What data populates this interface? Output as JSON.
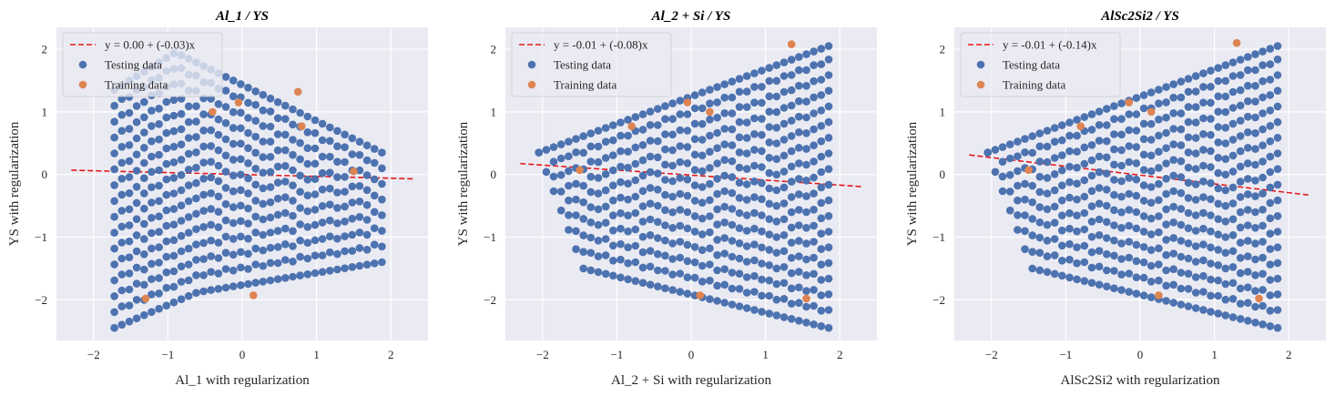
{
  "colors": {
    "background": "#eaeaf2",
    "grid": "#ffffff",
    "testing": "#4c72b0",
    "training": "#dd8452",
    "fit": "#e41a1c"
  },
  "chart_data": [
    {
      "type": "scatter",
      "title": "Al_1 / YS",
      "xlabel": "Al_1 with regularization",
      "ylabel": "YS with regularization",
      "xlim": [
        -2.5,
        2.5
      ],
      "ylim": [
        -2.65,
        2.35
      ],
      "xticks": [
        -2,
        -1,
        0,
        1,
        2
      ],
      "yticks": [
        -2,
        -1,
        0,
        1,
        2
      ],
      "xtick_labels": [
        "−2",
        "−1",
        "0",
        "1",
        "2"
      ],
      "ytick_labels": [
        "−2",
        "−1",
        "0",
        "1",
        "2"
      ],
      "legend": {
        "position": "upper-left",
        "entries": [
          "y = 0.00 + (-0.03)x",
          "Testing data",
          "Training data"
        ]
      },
      "fit_line": {
        "label": "y = 0.00 + (-0.03)x",
        "intercept": 0.0,
        "slope": -0.03,
        "x_range": [
          -2.3,
          2.3
        ]
      },
      "testing_grid": {
        "x_start": -1.72,
        "x_step": 0.1,
        "x_count": 37,
        "top_boundary": "dome",
        "top_left_y": 1.35,
        "top_peak_x": -0.9,
        "top_peak_y": 1.95,
        "top_right_y": 0.35,
        "bottom_left_y": -2.45,
        "bottom_mid_x": -0.6,
        "bottom_mid_y": -1.88,
        "bottom_right_y": -1.4,
        "y_step": 0.25
      },
      "training_points": {
        "x": [
          -1.3,
          0.15,
          -0.05,
          0.75,
          0.8,
          1.5,
          -0.4
        ],
        "y": [
          -1.98,
          -1.93,
          1.15,
          1.32,
          0.77,
          0.05,
          1.0
        ]
      }
    },
    {
      "type": "scatter",
      "title": "Al_2 + Si / YS",
      "xlabel": "Al_2 + Si with regularization",
      "ylabel": "YS with regularization",
      "xlim": [
        -2.5,
        2.5
      ],
      "ylim": [
        -2.65,
        2.35
      ],
      "xticks": [
        -2,
        -1,
        0,
        1,
        2
      ],
      "yticks": [
        -2,
        -1,
        0,
        1,
        2
      ],
      "xtick_labels": [
        "−2",
        "−1",
        "0",
        "1",
        "2"
      ],
      "ytick_labels": [
        "−2",
        "−1",
        "0",
        "1",
        "2"
      ],
      "legend": {
        "position": "upper-left",
        "entries": [
          "y = -0.01 + (-0.08)x",
          "Testing data",
          "Training data"
        ]
      },
      "fit_line": {
        "label": "y = -0.01 + (-0.08)x",
        "intercept": -0.01,
        "slope": -0.08,
        "x_range": [
          -2.3,
          2.3
        ]
      },
      "testing_grid": {
        "x_start": -2.05,
        "x_step": 0.1,
        "x_count": 40,
        "top_boundary": "linear",
        "top_left_y": 0.35,
        "top_right_y": 2.05,
        "bottom_left_y": 0.35,
        "bottom_mid_x": -1.45,
        "bottom_mid_y": -1.5,
        "bottom_right_y": -2.45,
        "y_step": 0.25
      },
      "training_points": {
        "x": [
          -1.5,
          -0.8,
          -0.05,
          0.25,
          1.35,
          1.55,
          0.12
        ],
        "y": [
          0.07,
          0.77,
          1.15,
          1.0,
          2.08,
          -1.98,
          -1.93
        ]
      }
    },
    {
      "type": "scatter",
      "title": "AlSc2Si2 / YS",
      "xlabel": "AlSc2Si2 with regularization",
      "ylabel": "YS with regularization",
      "xlim": [
        -2.5,
        2.5
      ],
      "ylim": [
        -2.65,
        2.35
      ],
      "xticks": [
        -2,
        -1,
        0,
        1,
        2
      ],
      "yticks": [
        -2,
        -1,
        0,
        1,
        2
      ],
      "xtick_labels": [
        "−2",
        "−1",
        "0",
        "1",
        "2"
      ],
      "ytick_labels": [
        "−2",
        "−1",
        "0",
        "1",
        "2"
      ],
      "legend": {
        "position": "upper-left",
        "entries": [
          "y = -0.01 + (-0.14)x",
          "Testing data",
          "Training data"
        ]
      },
      "fit_line": {
        "label": "y = -0.01 + (-0.14)x",
        "intercept": -0.01,
        "slope": -0.14,
        "x_range": [
          -2.3,
          2.3
        ]
      },
      "testing_grid": {
        "x_start": -2.05,
        "x_step": 0.1,
        "x_count": 40,
        "top_boundary": "linear",
        "top_left_y": 0.35,
        "top_right_y": 2.05,
        "bottom_left_y": 0.35,
        "bottom_mid_x": -1.45,
        "bottom_mid_y": -1.5,
        "bottom_right_y": -2.45,
        "y_step": 0.25
      },
      "training_points": {
        "x": [
          -1.5,
          -0.8,
          -0.15,
          0.15,
          1.3,
          1.6,
          0.25
        ],
        "y": [
          0.07,
          0.77,
          1.15,
          1.0,
          2.1,
          -1.98,
          -1.93
        ]
      }
    }
  ]
}
